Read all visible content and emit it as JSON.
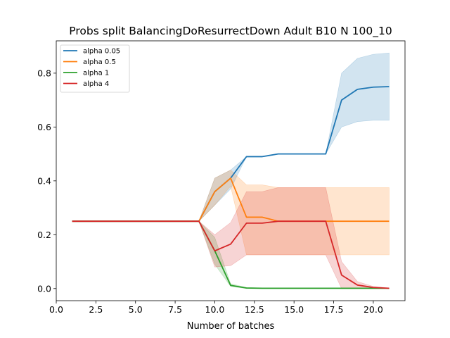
{
  "chart_data": {
    "type": "line",
    "title": "Probs split BalancingDoResurrectDown Adult B10 N 100_10",
    "xlabel": "Number of batches",
    "ylabel": "",
    "xlim": [
      0.0,
      22.0
    ],
    "ylim": [
      -0.045,
      0.92
    ],
    "xticks": [
      0.0,
      2.5,
      5.0,
      7.5,
      10.0,
      12.5,
      15.0,
      17.5,
      20.0
    ],
    "xtick_labels": [
      "0.0",
      "2.5",
      "5.0",
      "7.5",
      "10.0",
      "12.5",
      "15.0",
      "17.5",
      "20.0"
    ],
    "yticks": [
      0.0,
      0.2,
      0.4,
      0.6,
      0.8
    ],
    "ytick_labels": [
      "0.0",
      "0.2",
      "0.4",
      "0.6",
      "0.8"
    ],
    "grid": false,
    "legend_position": "upper-left",
    "x": [
      1,
      2,
      3,
      4,
      5,
      6,
      7,
      8,
      9,
      10,
      11,
      12,
      13,
      14,
      15,
      16,
      17,
      18,
      19,
      20,
      21
    ],
    "series": [
      {
        "name": "alpha 0.05",
        "color": "#1f77b4",
        "values": [
          0.25,
          0.25,
          0.25,
          0.25,
          0.25,
          0.25,
          0.25,
          0.25,
          0.25,
          0.36,
          0.41,
          0.49,
          0.49,
          0.5,
          0.5,
          0.5,
          0.5,
          0.7,
          0.74,
          0.748,
          0.75
        ],
        "lower": [
          0.25,
          0.25,
          0.25,
          0.25,
          0.25,
          0.25,
          0.25,
          0.25,
          0.25,
          0.31,
          0.37,
          0.49,
          0.49,
          0.5,
          0.5,
          0.5,
          0.5,
          0.6,
          0.62,
          0.625,
          0.625
        ],
        "upper": [
          0.25,
          0.25,
          0.25,
          0.25,
          0.25,
          0.25,
          0.25,
          0.25,
          0.25,
          0.41,
          0.44,
          0.49,
          0.49,
          0.5,
          0.5,
          0.5,
          0.5,
          0.8,
          0.855,
          0.87,
          0.875
        ]
      },
      {
        "name": "alpha 0.5",
        "color": "#ff7f0e",
        "values": [
          0.25,
          0.25,
          0.25,
          0.25,
          0.25,
          0.25,
          0.25,
          0.25,
          0.25,
          0.36,
          0.41,
          0.265,
          0.265,
          0.25,
          0.25,
          0.25,
          0.25,
          0.25,
          0.25,
          0.25,
          0.25
        ],
        "lower": [
          0.25,
          0.25,
          0.25,
          0.25,
          0.25,
          0.25,
          0.25,
          0.25,
          0.25,
          0.31,
          0.38,
          0.125,
          0.125,
          0.125,
          0.125,
          0.125,
          0.125,
          0.125,
          0.125,
          0.125,
          0.125
        ],
        "upper": [
          0.25,
          0.25,
          0.25,
          0.25,
          0.25,
          0.25,
          0.25,
          0.25,
          0.25,
          0.41,
          0.44,
          0.385,
          0.385,
          0.375,
          0.375,
          0.375,
          0.375,
          0.375,
          0.375,
          0.375,
          0.375
        ]
      },
      {
        "name": "alpha 1",
        "color": "#2ca02c",
        "values": [
          0.25,
          0.25,
          0.25,
          0.25,
          0.25,
          0.25,
          0.25,
          0.25,
          0.25,
          0.14,
          0.012,
          0.002,
          0.001,
          0.001,
          0.001,
          0.001,
          0.001,
          0.001,
          0.001,
          0.001,
          0.001
        ],
        "lower": [
          0.25,
          0.25,
          0.25,
          0.25,
          0.25,
          0.25,
          0.25,
          0.25,
          0.25,
          0.09,
          0.008,
          0.0,
          0.0,
          0.0,
          0.0,
          0.0,
          0.0,
          0.0,
          0.0,
          0.0,
          0.0
        ],
        "upper": [
          0.25,
          0.25,
          0.25,
          0.25,
          0.25,
          0.25,
          0.25,
          0.25,
          0.25,
          0.19,
          0.018,
          0.004,
          0.002,
          0.002,
          0.002,
          0.002,
          0.002,
          0.002,
          0.002,
          0.002,
          0.002
        ]
      },
      {
        "name": "alpha 4",
        "color": "#d62728",
        "values": [
          0.25,
          0.25,
          0.25,
          0.25,
          0.25,
          0.25,
          0.25,
          0.25,
          0.25,
          0.14,
          0.165,
          0.243,
          0.243,
          0.25,
          0.25,
          0.25,
          0.25,
          0.05,
          0.013,
          0.004,
          0.001
        ],
        "lower": [
          0.25,
          0.25,
          0.25,
          0.25,
          0.25,
          0.25,
          0.25,
          0.25,
          0.25,
          0.08,
          0.085,
          0.125,
          0.125,
          0.125,
          0.125,
          0.125,
          0.125,
          0.0,
          0.0,
          0.0,
          0.0
        ],
        "upper": [
          0.25,
          0.25,
          0.25,
          0.25,
          0.25,
          0.25,
          0.25,
          0.25,
          0.25,
          0.2,
          0.245,
          0.36,
          0.36,
          0.375,
          0.375,
          0.375,
          0.375,
          0.1,
          0.026,
          0.008,
          0.002
        ]
      }
    ]
  }
}
